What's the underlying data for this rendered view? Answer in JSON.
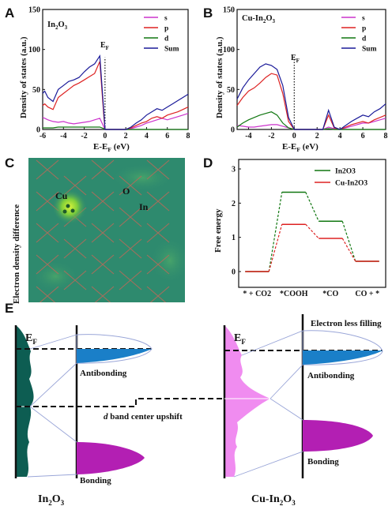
{
  "panels": {
    "A": {
      "letter": "A",
      "title": "In",
      "title_sub": "2",
      "title_tail": "O",
      "title_sub2": "3",
      "ylabel": "Density of states (a.u.)",
      "xlabel": "E-E",
      "xlabel_sub": "F",
      "xlabel_tail": " (eV)",
      "ef_label": "E",
      "ef_sub": "F"
    },
    "B": {
      "letter": "B",
      "title": "Cu-In",
      "title_sub": "2",
      "title_tail": "O",
      "title_sub2": "3",
      "ylabel": "Density of states (a.u.)",
      "xlabel": "E-E",
      "xlabel_sub": "F",
      "xlabel_tail": " (eV)",
      "ef_label": "E",
      "ef_sub": "F"
    },
    "C": {
      "letter": "C",
      "ylabel": "Electron density difference",
      "label_cu": "Cu",
      "label_o": "O",
      "label_in": "In"
    },
    "D": {
      "letter": "D",
      "ylabel": "Free energy"
    },
    "E": {
      "letter": "E",
      "ef_left": "E",
      "ef_left_sub": "F",
      "ef_right": "E",
      "ef_right_sub": "F",
      "antibonding_left": "Antibonding",
      "bonding_left": "Bonding",
      "antibonding_right": "Antibonding",
      "bonding_right": "Bonding",
      "electron_less": "Electron less filling",
      "dband_d": "d",
      "dband_rest": " band center upshift",
      "name_left": "In",
      "name_left_sub": "2",
      "name_left_tail": "O",
      "name_left_sub2": "3",
      "name_right": "Cu-In",
      "name_right_sub": "2",
      "name_right_tail": "O",
      "name_right_sub2": "3"
    }
  },
  "colors": {
    "s": "#cc33cc",
    "p": "#dd2222",
    "d": "#117711",
    "sum": "#1a1a99",
    "in2o3": "#117711",
    "cuin2o3": "#dd2222",
    "teal": "#0d5d52",
    "pink": "#f08cf0",
    "magenta": "#b31fb3",
    "blue": "#1a7fc8",
    "map_bg": "#2e8a6e"
  },
  "chart_data": [
    {
      "type": "line",
      "panel": "A",
      "title": "In2O3",
      "xlabel": "E-EF (eV)",
      "ylabel": "Density of states (a.u.)",
      "xlim": [
        -6,
        8
      ],
      "ylim": [
        0,
        150
      ],
      "xticks": [
        -6,
        -4,
        -2,
        0,
        2,
        4,
        6,
        8
      ],
      "yticks": [
        0,
        50,
        100,
        150
      ],
      "legend_position": "top-right",
      "series": [
        {
          "name": "s",
          "x": [
            -6,
            -5.8,
            -5.5,
            -5,
            -4.5,
            -4,
            -3.5,
            -3,
            -2.5,
            -2,
            -1.5,
            -1,
            -0.5,
            -0.1,
            0,
            0.5,
            1,
            1.5,
            2,
            2.5,
            3,
            3.5,
            4,
            4.5,
            5,
            5.5,
            6,
            6.5,
            7,
            7.5,
            8
          ],
          "y": [
            15,
            14,
            12,
            10,
            9,
            10,
            8,
            7,
            8,
            9,
            10,
            12,
            14,
            3,
            0,
            0,
            0,
            0,
            0,
            1,
            3,
            5,
            8,
            10,
            12,
            14,
            12,
            14,
            16,
            18,
            20
          ]
        },
        {
          "name": "p",
          "x": [
            -6,
            -5.8,
            -5.5,
            -5,
            -4.5,
            -4,
            -3.5,
            -3,
            -2.5,
            -2,
            -1.5,
            -1,
            -0.5,
            -0.1,
            0,
            0.5,
            1,
            1.5,
            2,
            2.5,
            3,
            3.5,
            4,
            4.5,
            5,
            5.5,
            6,
            6.5,
            7,
            7.5,
            8
          ],
          "y": [
            30,
            32,
            28,
            25,
            40,
            45,
            50,
            55,
            58,
            62,
            66,
            70,
            85,
            15,
            0,
            0,
            0,
            0,
            0,
            2,
            5,
            8,
            10,
            14,
            16,
            14,
            18,
            20,
            22,
            25,
            28
          ]
        },
        {
          "name": "d",
          "x": [
            -6,
            -5.8,
            -5.5,
            -5,
            -4.5,
            -4,
            -3.5,
            -3,
            -2.5,
            -2,
            -1.5,
            -1,
            -0.5,
            -0.1,
            0,
            0.5,
            1,
            1.5,
            2,
            2.5,
            3,
            3.5,
            4,
            4.5,
            5,
            5.5,
            6,
            6.5,
            7,
            7.5,
            8
          ],
          "y": [
            2,
            2,
            2,
            2,
            3,
            3,
            3,
            3,
            3,
            3,
            3,
            3,
            3,
            1,
            0,
            0,
            0,
            0,
            0,
            0,
            0,
            0,
            0,
            0,
            0,
            0,
            0,
            0,
            0,
            0,
            0
          ]
        },
        {
          "name": "Sum",
          "x": [
            -6,
            -5.8,
            -5.5,
            -5,
            -4.5,
            -4,
            -3.5,
            -3,
            -2.5,
            -2,
            -1.5,
            -1,
            -0.5,
            -0.1,
            0,
            0.5,
            1,
            1.5,
            2,
            2.5,
            3,
            3.5,
            4,
            4.5,
            5,
            5.5,
            6,
            6.5,
            7,
            7.5,
            8
          ],
          "y": [
            45,
            48,
            40,
            35,
            50,
            55,
            60,
            62,
            65,
            72,
            78,
            82,
            92,
            20,
            0,
            0,
            0,
            0,
            0,
            3,
            8,
            12,
            18,
            22,
            26,
            24,
            28,
            32,
            36,
            40,
            44
          ]
        }
      ]
    },
    {
      "type": "line",
      "panel": "B",
      "title": "Cu-In2O3",
      "xlabel": "E-EF (eV)",
      "ylabel": "Density of states (a.u.)",
      "xlim": [
        -5,
        8
      ],
      "ylim": [
        0,
        150
      ],
      "xticks": [
        -4,
        -2,
        0,
        2,
        4,
        6,
        8
      ],
      "yticks": [
        0,
        50,
        100,
        150
      ],
      "legend_position": "top-right",
      "series": [
        {
          "name": "s",
          "x": [
            -5,
            -4.5,
            -4,
            -3.5,
            -3,
            -2.5,
            -2,
            -1.5,
            -1,
            -0.5,
            0,
            0.5,
            1,
            1.5,
            2,
            2.5,
            3,
            3.5,
            4,
            4.5,
            5,
            5.5,
            6,
            6.5,
            7,
            7.5,
            8
          ],
          "y": [
            5,
            4,
            3,
            3,
            4,
            5,
            6,
            6,
            4,
            2,
            0,
            0,
            0,
            0,
            0,
            0,
            3,
            1,
            0,
            2,
            4,
            6,
            8,
            8,
            10,
            12,
            14
          ]
        },
        {
          "name": "p",
          "x": [
            -5,
            -4.5,
            -4,
            -3.5,
            -3,
            -2.5,
            -2,
            -1.5,
            -1,
            -0.5,
            0,
            0.5,
            1,
            1.5,
            2,
            2.5,
            3,
            3.5,
            4,
            4.5,
            5,
            5.5,
            6,
            6.5,
            7,
            7.5,
            8
          ],
          "y": [
            30,
            40,
            48,
            52,
            58,
            65,
            70,
            68,
            45,
            10,
            0,
            0,
            0,
            0,
            0,
            0,
            18,
            2,
            0,
            3,
            6,
            8,
            10,
            8,
            12,
            15,
            18
          ]
        },
        {
          "name": "d",
          "x": [
            -5,
            -4.5,
            -4,
            -3.5,
            -3,
            -2.5,
            -2,
            -1.5,
            -1,
            -0.5,
            0,
            0.5,
            1,
            1.5,
            2,
            2.5,
            3,
            3.5,
            4,
            4.5,
            5,
            5.5,
            6,
            6.5,
            7,
            7.5,
            8
          ],
          "y": [
            3,
            8,
            12,
            15,
            18,
            20,
            22,
            18,
            8,
            2,
            0,
            0,
            0,
            0,
            0,
            0,
            1,
            0,
            0,
            0,
            0,
            0,
            0,
            0,
            0,
            0,
            0
          ]
        },
        {
          "name": "Sum",
          "x": [
            -5,
            -4.5,
            -4,
            -3.5,
            -3,
            -2.5,
            -2,
            -1.5,
            -1,
            -0.5,
            0,
            0.5,
            1,
            1.5,
            2,
            2.5,
            3,
            3.5,
            4,
            4.5,
            5,
            5.5,
            6,
            6.5,
            7,
            7.5,
            8
          ],
          "y": [
            38,
            52,
            62,
            70,
            78,
            82,
            80,
            75,
            55,
            15,
            0,
            0,
            0,
            0,
            0,
            0,
            24,
            3,
            0,
            5,
            10,
            14,
            18,
            16,
            22,
            26,
            32
          ]
        }
      ]
    },
    {
      "type": "line",
      "panel": "D",
      "title": "",
      "xlabel": "",
      "ylabel": "Free energy",
      "categories": [
        "* + CO2",
        "*COOH",
        "*CO",
        "CO + *"
      ],
      "ylim": [
        0,
        3
      ],
      "yticks": [
        0,
        1,
        2,
        3
      ],
      "legend_position": "top-right",
      "series": [
        {
          "name": "In2O3",
          "values": [
            0,
            2.32,
            1.47,
            0.3
          ]
        },
        {
          "name": "Cu-In2O3",
          "values": [
            0,
            1.38,
            0.97,
            0.3
          ]
        }
      ]
    }
  ]
}
